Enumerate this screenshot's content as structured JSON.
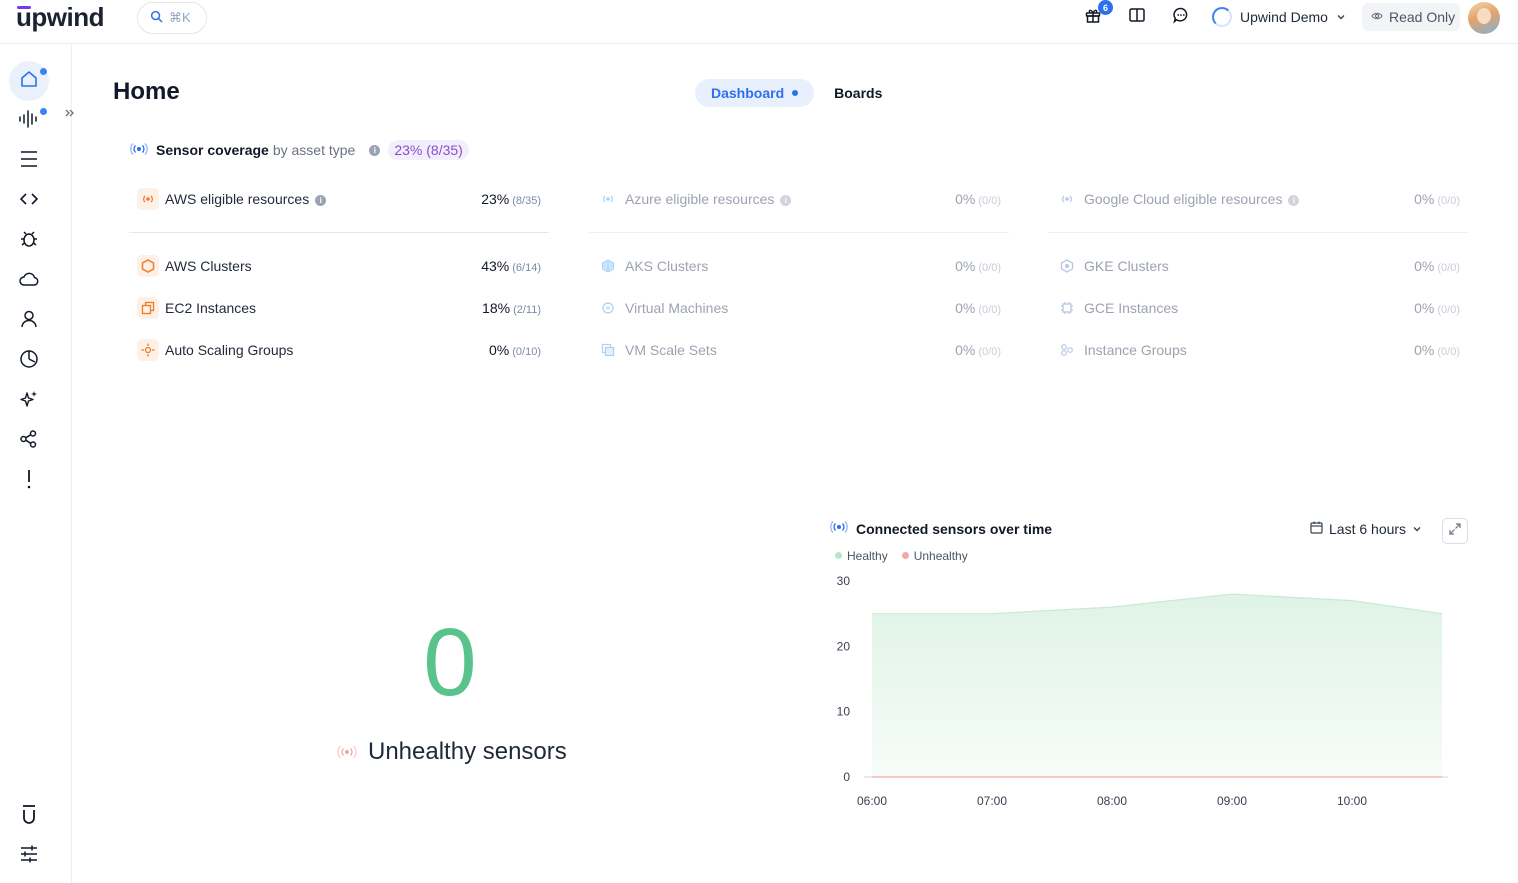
{
  "app": {
    "logo": "upwind"
  },
  "search": {
    "shortcut": "⌘K"
  },
  "topbar": {
    "notifications_count": "6",
    "org_name": "Upwind Demo",
    "access_mode": "Read Only"
  },
  "sidebar": {
    "items": [
      {
        "name": "home",
        "icon": "home-icon"
      },
      {
        "name": "activity",
        "icon": "waveform-icon"
      },
      {
        "name": "inventory",
        "icon": "menu-icon"
      },
      {
        "name": "code",
        "icon": "code-icon"
      },
      {
        "name": "vulnerabilities",
        "icon": "bug-icon"
      },
      {
        "name": "cloud",
        "icon": "cloud-icon"
      },
      {
        "name": "identities",
        "icon": "user-icon"
      },
      {
        "name": "reports",
        "icon": "clock-chart-icon"
      },
      {
        "name": "ai",
        "icon": "sparkle-icon"
      },
      {
        "name": "graph",
        "icon": "share-icon"
      },
      {
        "name": "alerts",
        "icon": "exclamation-icon"
      }
    ]
  },
  "page": {
    "title": "Home",
    "tabs": [
      {
        "label": "Dashboard",
        "active": true
      },
      {
        "label": "Boards",
        "active": false
      }
    ]
  },
  "coverage": {
    "title": "Sensor coverage",
    "subtitle": "by asset type",
    "total": "23% (8/35)",
    "columns": [
      {
        "provider": "aws",
        "header": {
          "label": "AWS eligible resources",
          "pct": "23%",
          "count": "(8/35)"
        },
        "rows": [
          {
            "label": "AWS Clusters",
            "pct": "43%",
            "count": "(6/14)",
            "icon": "hexagon-icon"
          },
          {
            "label": "EC2 Instances",
            "pct": "18%",
            "count": "(2/11)",
            "icon": "instances-icon"
          },
          {
            "label": "Auto Scaling Groups",
            "pct": "0%",
            "count": "(0/10)",
            "icon": "scaling-icon"
          }
        ]
      },
      {
        "provider": "azure",
        "header": {
          "label": "Azure eligible resources",
          "pct": "0%",
          "count": "(0/0)"
        },
        "rows": [
          {
            "label": "AKS Clusters",
            "pct": "0%",
            "count": "(0/0)",
            "icon": "cube-icon"
          },
          {
            "label": "Virtual Machines",
            "pct": "0%",
            "count": "(0/0)",
            "icon": "vm-icon"
          },
          {
            "label": "VM Scale Sets",
            "pct": "0%",
            "count": "(0/0)",
            "icon": "scale-set-icon"
          }
        ]
      },
      {
        "provider": "gcp",
        "header": {
          "label": "Google Cloud eligible resources",
          "pct": "0%",
          "count": "(0/0)"
        },
        "rows": [
          {
            "label": "GKE Clusters",
            "pct": "0%",
            "count": "(0/0)",
            "icon": "gke-icon"
          },
          {
            "label": "GCE Instances",
            "pct": "0%",
            "count": "(0/0)",
            "icon": "chip-icon"
          },
          {
            "label": "Instance Groups",
            "pct": "0%",
            "count": "(0/0)",
            "icon": "groups-icon"
          }
        ]
      }
    ]
  },
  "unhealthy": {
    "count": "0",
    "label": "Unhealthy sensors"
  },
  "sensors_chart": {
    "title": "Connected sensors over time",
    "range": "Last 6 hours",
    "legend": [
      {
        "name": "Healthy",
        "color": "#b7e6c9"
      },
      {
        "name": "Unhealthy",
        "color": "#f3a7a7"
      }
    ]
  },
  "chart_data": {
    "type": "area",
    "title": "Connected sensors over time",
    "x": [
      "06:00",
      "07:00",
      "08:00",
      "09:00",
      "10:00",
      "10:45"
    ],
    "xticks": [
      "06:00",
      "07:00",
      "08:00",
      "09:00",
      "10:00"
    ],
    "yticks": [
      0,
      10,
      20,
      30
    ],
    "ylim": [
      0,
      30
    ],
    "series": [
      {
        "name": "Healthy",
        "values": [
          25,
          25,
          26,
          28,
          27,
          25
        ],
        "color": "#5ac38b"
      },
      {
        "name": "Unhealthy",
        "values": [
          0,
          0,
          0,
          0,
          0,
          0
        ],
        "color": "#f3a7a7"
      }
    ],
    "legend": "top-left",
    "grid": false
  }
}
